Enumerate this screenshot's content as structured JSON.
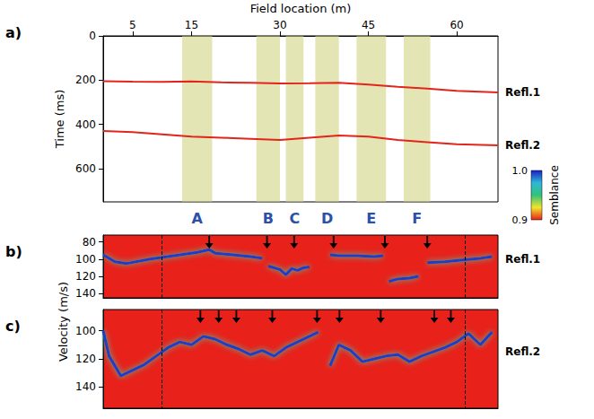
{
  "chart_data": [
    {
      "panel": "a)",
      "type": "line",
      "xlabel": "Field location (m)",
      "ylabel": "Time (ms)",
      "xlim": [
        0,
        67
      ],
      "xticks": [
        5,
        15,
        30,
        45,
        60
      ],
      "ylim": [
        0,
        750
      ],
      "yticks": [
        0,
        200,
        400,
        600
      ],
      "x": [
        0,
        5,
        10,
        15,
        20,
        25,
        30,
        35,
        40,
        45,
        50,
        55,
        60,
        67
      ],
      "series": [
        {
          "name": "Refl.1",
          "color": "#e3241b",
          "values": [
            205,
            207,
            208,
            206,
            210,
            212,
            215,
            214,
            212,
            220,
            230,
            238,
            248,
            255
          ]
        },
        {
          "name": "Refl.2",
          "color": "#e3241b",
          "values": [
            430,
            435,
            445,
            455,
            460,
            465,
            470,
            460,
            450,
            455,
            470,
            480,
            490,
            495
          ]
        }
      ],
      "zones": [
        {
          "label": "A",
          "x": [
            13.4,
            18.5
          ]
        },
        {
          "label": "B",
          "x": [
            26,
            30
          ]
        },
        {
          "label": "C",
          "x": [
            31,
            34
          ]
        },
        {
          "label": "D",
          "x": [
            36,
            40
          ]
        },
        {
          "label": "E",
          "x": [
            43,
            48
          ]
        },
        {
          "label": "F",
          "x": [
            51,
            55.5
          ]
        }
      ]
    },
    {
      "panel": "b)",
      "type": "line",
      "ylabel": "Velocity (m/s)",
      "tick_labels": "y",
      "xlim": [
        0,
        67
      ],
      "ylim": [
        72,
        145
      ],
      "yticks": [
        80,
        100,
        120,
        140
      ],
      "x": [
        0,
        2,
        4,
        8,
        12,
        16,
        18,
        19,
        22,
        25,
        27,
        27.5,
        28,
        29,
        30,
        31,
        32,
        33,
        34,
        35,
        36,
        38.5,
        40,
        43,
        46,
        47.5,
        48,
        48.5,
        50,
        52,
        53.5,
        54,
        55,
        58,
        61,
        64,
        66
      ],
      "series": [
        {
          "name": "Refl.1",
          "color": "#1e3cc8",
          "values": [
            95,
            103,
            105,
            100,
            96,
            92,
            89,
            93,
            95,
            97,
            99,
            null,
            108,
            110,
            112,
            118,
            111,
            113,
            110,
            109,
            null,
            95,
            96,
            96,
            97,
            96,
            null,
            126,
            123,
            122,
            120,
            null,
            104,
            103,
            101,
            99,
            97
          ]
        }
      ],
      "arrows_x": [
        18,
        27.8,
        32.4,
        39.1,
        47.8,
        55
      ],
      "dashed_x": [
        9.9,
        61.4
      ],
      "colorbar": {
        "title": "Semblance",
        "range": [
          0.9,
          1.0
        ],
        "ticks": [
          {
            "value": 0.9,
            "label": "0.9"
          },
          {
            "value": 1,
            "label": "1.0"
          }
        ]
      }
    },
    {
      "panel": "c)",
      "type": "line",
      "tick_labels": "y",
      "xlim": [
        0,
        67
      ],
      "ylim": [
        85,
        155
      ],
      "yticks": [
        100,
        120,
        140
      ],
      "x": [
        0,
        1,
        3,
        5,
        7,
        9,
        11,
        13,
        15,
        17,
        19,
        21,
        23,
        25,
        27,
        29,
        31,
        33,
        35,
        36.5,
        37,
        38.5,
        40,
        42,
        44,
        46,
        48,
        50,
        52,
        54,
        56,
        58,
        60,
        62,
        64,
        66
      ],
      "series": [
        {
          "name": "Refl.2",
          "color": "#1e3cc8",
          "values": [
            100,
            118,
            132,
            128,
            124,
            118,
            112,
            108,
            110,
            104,
            106,
            110,
            113,
            117,
            114,
            118,
            112,
            108,
            104,
            101,
            null,
            125,
            110,
            114,
            122,
            120,
            118,
            117,
            122,
            118,
            115,
            112,
            108,
            102,
            110,
            101
          ]
        }
      ],
      "arrows_x": [
        16.5,
        19.6,
        22.6,
        28.7,
        36.3,
        40.1,
        47.1,
        56.2,
        59
      ],
      "dashed_x": [
        9.9,
        61.4
      ]
    }
  ]
}
